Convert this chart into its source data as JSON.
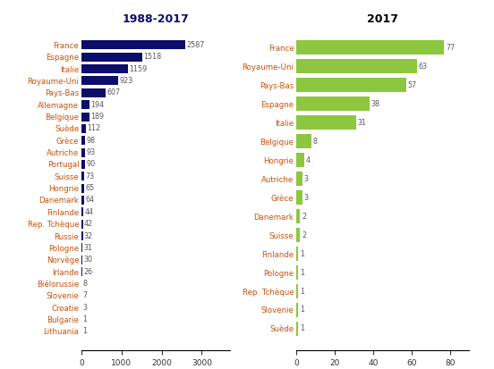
{
  "left": {
    "title": "1988-2017",
    "countries": [
      "France",
      "Espagne",
      "Italie",
      "Royaume-Uni",
      "Pays-Bas",
      "Allemagne",
      "Belgique",
      "Suède",
      "Grèce",
      "Autriche",
      "Portugal",
      "Suisse",
      "Hongrie",
      "Danemark",
      "Finlande",
      "Rep. Tchèque",
      "Russie",
      "Pologne",
      "Norvège",
      "Irlande",
      "Biélorussie",
      "Slovenie",
      "Croatie",
      "Bulgarie",
      "Lithuania"
    ],
    "values": [
      2587,
      1518,
      1159,
      923,
      607,
      194,
      189,
      112,
      98,
      93,
      90,
      73,
      65,
      64,
      44,
      42,
      32,
      31,
      30,
      26,
      8,
      7,
      3,
      1,
      1
    ],
    "bar_color": "#0d0d6b",
    "xlim": [
      0,
      3700
    ],
    "xticks": [
      0,
      1000,
      2000,
      3000
    ]
  },
  "right": {
    "title": "2017",
    "countries": [
      "France",
      "Royaume-Uni",
      "Pays-Bas",
      "Espagne",
      "Italie",
      "Belgique",
      "Hongrie",
      "Autriche",
      "Grèce",
      "Danemark",
      "Suisse",
      "Finlande",
      "Pologne",
      "Rep. Tchèque",
      "Slovenie",
      "Suède"
    ],
    "values": [
      77,
      63,
      57,
      38,
      31,
      8,
      4,
      3,
      3,
      2,
      2,
      1,
      1,
      1,
      1,
      1
    ],
    "bar_color": "#8dc63f",
    "xlim": [
      0,
      90
    ],
    "xticks": [
      0,
      20,
      40,
      60,
      80
    ]
  },
  "label_color": "#c8520a",
  "value_color": "#5a5a5a",
  "title_fontsize": 9,
  "label_fontsize": 6.2,
  "value_fontsize": 5.8,
  "background_color": "#ffffff"
}
